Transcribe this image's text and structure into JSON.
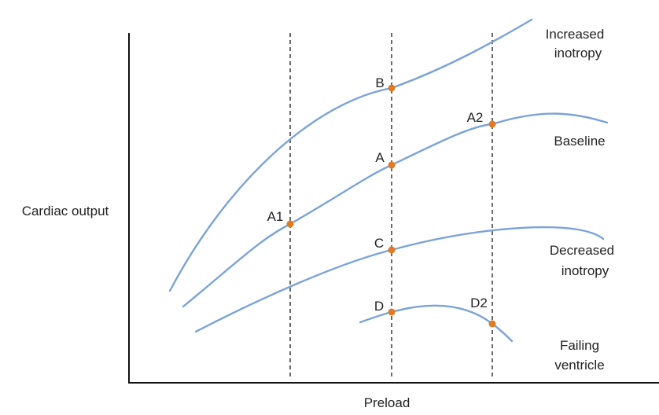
{
  "axes": {
    "x_label": "Preload",
    "y_label": "Cardiac output"
  },
  "curves": [
    {
      "id": "increased",
      "label_lines": [
        "Increased",
        "inotropy"
      ]
    },
    {
      "id": "baseline",
      "label_lines": [
        "Baseline"
      ]
    },
    {
      "id": "decreased",
      "label_lines": [
        "Decreased",
        "inotropy"
      ]
    },
    {
      "id": "failing",
      "label_lines": [
        "Failing",
        "ventricle"
      ]
    }
  ],
  "points": {
    "A1": "A1",
    "A": "A",
    "A2": "A2",
    "B": "B",
    "C": "C",
    "D": "D",
    "D2": "D2"
  },
  "colors": {
    "curve": "#7ba3d9",
    "point": "#e07b24",
    "axis": "#111111"
  }
}
